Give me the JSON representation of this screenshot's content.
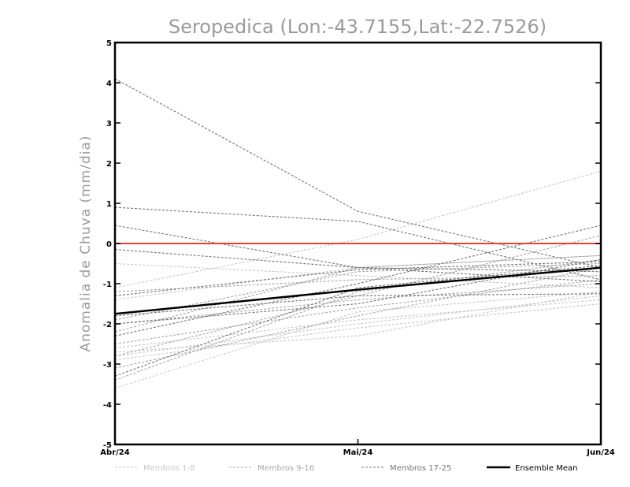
{
  "chart_data": {
    "type": "line",
    "title": "Seropedica (Lon:-43.7155,Lat:-22.7526)",
    "xlabel": "",
    "ylabel": "Anomalia de Chuva (mm/dia)",
    "categories": [
      "Abr/24",
      "Mai/24",
      "Jun/24"
    ],
    "ylim": [
      -5,
      5
    ],
    "yticks": [
      -5,
      -4,
      -3,
      -2,
      -1,
      0,
      1,
      2,
      3,
      4,
      5
    ],
    "grid": false,
    "reference_line": {
      "y": 0,
      "color": "#e8413b"
    },
    "groups": [
      {
        "name": "Membros 1-8",
        "color": "#c8c8c8",
        "dashed": true
      },
      {
        "name": "Membros 9-16",
        "color": "#a8a8a8",
        "dashed": true
      },
      {
        "name": "Membros 17-25",
        "color": "#747474",
        "dashed": true
      },
      {
        "name": "Ensemble Mean",
        "color": "#000000",
        "dashed": false
      }
    ],
    "series": [
      {
        "group": 0,
        "values": [
          -1.1,
          0.1,
          1.8
        ]
      },
      {
        "group": 0,
        "values": [
          -2.6,
          -1.9,
          -1.4
        ]
      },
      {
        "group": 0,
        "values": [
          -2.8,
          -2.0,
          -1.3
        ]
      },
      {
        "group": 0,
        "values": [
          -3.6,
          -1.7,
          -1.2
        ]
      },
      {
        "group": 0,
        "values": [
          -0.5,
          -0.8,
          -1.1
        ]
      },
      {
        "group": 0,
        "values": [
          -2.7,
          -2.3,
          -1.2
        ]
      },
      {
        "group": 0,
        "values": [
          -2.9,
          -2.1,
          -1.5
        ]
      },
      {
        "group": 0,
        "values": [
          -1.4,
          -0.6,
          -0.3
        ]
      },
      {
        "group": 1,
        "values": [
          -2.2,
          -0.6,
          -0.3
        ]
      },
      {
        "group": 1,
        "values": [
          -2.5,
          -1.6,
          -0.9
        ]
      },
      {
        "group": 1,
        "values": [
          -3.1,
          -1.8,
          -0.6
        ]
      },
      {
        "group": 1,
        "values": [
          -1.9,
          -0.7,
          -0.5
        ]
      },
      {
        "group": 1,
        "values": [
          -2.8,
          -1.3,
          0.2
        ]
      },
      {
        "group": 1,
        "values": [
          -1.2,
          -0.9,
          -0.8
        ]
      },
      {
        "group": 1,
        "values": [
          -2.0,
          -1.4,
          -1.0
        ]
      },
      {
        "group": 1,
        "values": [
          -3.4,
          -1.2,
          -0.4
        ]
      },
      {
        "group": 2,
        "values": [
          4.1,
          0.8,
          -0.6
        ]
      },
      {
        "group": 2,
        "values": [
          0.9,
          0.55,
          -0.9
        ]
      },
      {
        "group": 2,
        "values": [
          0.45,
          -0.6,
          -0.7
        ]
      },
      {
        "group": 2,
        "values": [
          -0.15,
          -0.6,
          -0.95
        ]
      },
      {
        "group": 2,
        "values": [
          -1.3,
          -0.65,
          -0.45
        ]
      },
      {
        "group": 2,
        "values": [
          -2.0,
          -1.5,
          -0.4
        ]
      },
      {
        "group": 2,
        "values": [
          -1.8,
          -1.3,
          -1.25
        ]
      },
      {
        "group": 2,
        "values": [
          -2.3,
          -1.0,
          0.45
        ]
      },
      {
        "group": 2,
        "values": [
          -3.3,
          -1.1,
          -0.55
        ]
      },
      {
        "group": 3,
        "values": [
          -1.75,
          -1.15,
          -0.6
        ]
      }
    ]
  }
}
